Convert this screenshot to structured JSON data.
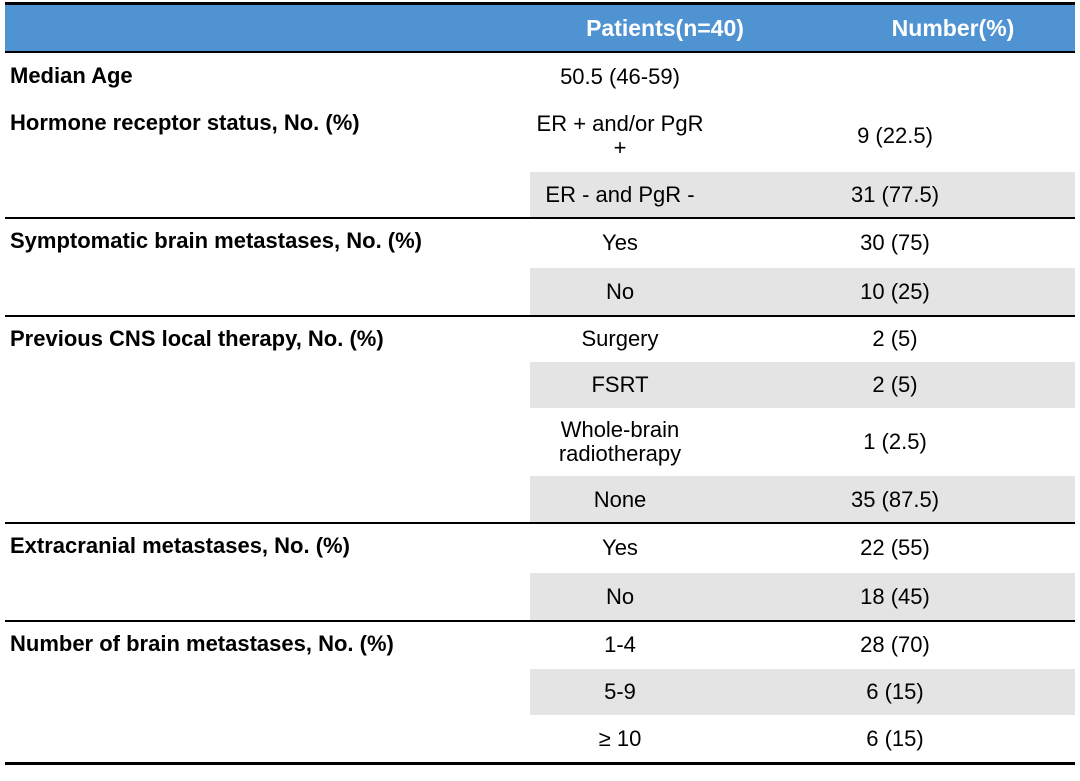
{
  "header": {
    "patients": "Patients(n=40)",
    "number": "Number(%)"
  },
  "groups": [
    {
      "label": "Median Age",
      "rows": [
        {
          "item": "50.5 (46-59)"
        }
      ]
    },
    {
      "label": "Hormone receptor status, No. (%)",
      "rows": [
        {
          "item": "ER + and/or PgR +",
          "value": "9 (22.5)"
        },
        {
          "item": "ER - and PgR -",
          "value": "31 (77.5)"
        }
      ]
    },
    {
      "label": "Symptomatic brain metastases, No. (%)",
      "rows": [
        {
          "item": "Yes",
          "value": "30 (75)"
        },
        {
          "item": "No",
          "value": "10 (25)"
        }
      ]
    },
    {
      "label": "Previous CNS local therapy, No. (%)",
      "rows": [
        {
          "item": "Surgery",
          "value": "2 (5)"
        },
        {
          "item": "FSRT",
          "value": "2 (5)"
        },
        {
          "item": "Whole-brain radiotherapy",
          "value": "1 (2.5)"
        },
        {
          "item": "None",
          "value": "35 (87.5)"
        }
      ]
    },
    {
      "label": "Extracranial metastases, No. (%)",
      "rows": [
        {
          "item": "Yes",
          "value": "22 (55)"
        },
        {
          "item": "No",
          "value": "18 (45)"
        }
      ]
    },
    {
      "label": "Number of brain metastases, No. (%)",
      "rows": [
        {
          "item": "1-4",
          "value": "28 (70)"
        },
        {
          "item": "5-9",
          "value": "6 (15)"
        },
        {
          "item": "≥ 10",
          "value": "6 (15)"
        }
      ]
    }
  ]
}
